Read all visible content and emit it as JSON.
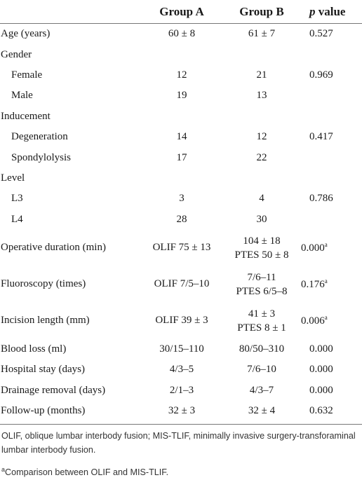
{
  "table": {
    "header": {
      "group_a": "Group A",
      "group_b": "Group B",
      "p_italic": "p",
      "p_rest": "value"
    },
    "rows": [
      {
        "label": "Age (years)",
        "a": "60 ± 8",
        "b": "61 ± 7",
        "p": "0.527"
      },
      {
        "label": "Gender",
        "sub": [
          {
            "label": "Female",
            "a": "12",
            "b": "21",
            "p": "0.969"
          },
          {
            "label": "Male",
            "a": "19",
            "b": "13"
          }
        ]
      },
      {
        "label": "Inducement",
        "sub": [
          {
            "label": "Degeneration",
            "a": "14",
            "b": "12",
            "p": "0.417"
          },
          {
            "label": "Spondylolysis",
            "a": "17",
            "b": "22"
          }
        ]
      },
      {
        "label": "Level",
        "sub": [
          {
            "label": "L3",
            "a": "3",
            "b": "4",
            "p": "0.786"
          },
          {
            "label": "L4",
            "a": "28",
            "b": "30"
          }
        ]
      },
      {
        "label": "Operative duration (min)",
        "a": "OLIF 75 ± 13",
        "b": [
          "104 ± 18",
          "PTES 50 ± 8"
        ],
        "p": "0.000",
        "note": "a"
      },
      {
        "label": "Fluoroscopy (times)",
        "a": "OLIF 7/5–10",
        "b": [
          "7/6–11",
          "PTES 6/5–8"
        ],
        "p": "0.176",
        "note": "a"
      },
      {
        "label": "Incision length (mm)",
        "a": "OLIF 39 ± 3",
        "b": [
          "41 ± 3",
          "PTES 8 ± 1"
        ],
        "p": "0.006",
        "note": "a"
      },
      {
        "label": "Blood loss (ml)",
        "a": "30/15–110",
        "b": "80/50–310",
        "p": "0.000"
      },
      {
        "label": "Hospital stay (days)",
        "a": "4/3–5",
        "b": "7/6–10",
        "p": "0.000"
      },
      {
        "label": "Drainage removal (days)",
        "a": "2/1–3",
        "b": "4/3–7",
        "p": "0.000"
      },
      {
        "label": "Follow-up (months)",
        "a": "32 ± 3",
        "b": "32 ± 4",
        "p": "0.632"
      }
    ]
  },
  "footnotes": {
    "abbreviations": "OLIF, oblique lumbar interbody fusion; MIS-TLIF, minimally invasive surgery-transforaminal lumbar interbody fusion.",
    "note_marker": "a",
    "note_text": "Comparison between OLIF and MIS-TLIF."
  }
}
